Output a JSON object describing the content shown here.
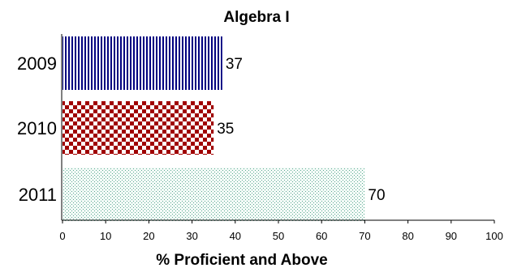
{
  "chart_data": {
    "type": "bar",
    "orientation": "horizontal",
    "title": "Algebra I",
    "xlabel": "% Proficient and Above",
    "ylabel": "",
    "categories": [
      "2009",
      "2010",
      "2011"
    ],
    "values": [
      37,
      35,
      70
    ],
    "xlim": [
      0,
      100
    ],
    "xticks": [
      "0",
      "10",
      "20",
      "30",
      "40",
      "50",
      "60",
      "70",
      "80",
      "90",
      "100"
    ],
    "bar_styles": [
      {
        "pattern": "vertical-stripes",
        "color": "#000080"
      },
      {
        "pattern": "checkerboard",
        "color": "#a00000"
      },
      {
        "pattern": "dots",
        "color": "#5aa890"
      }
    ],
    "grid": false,
    "legend": "none"
  }
}
